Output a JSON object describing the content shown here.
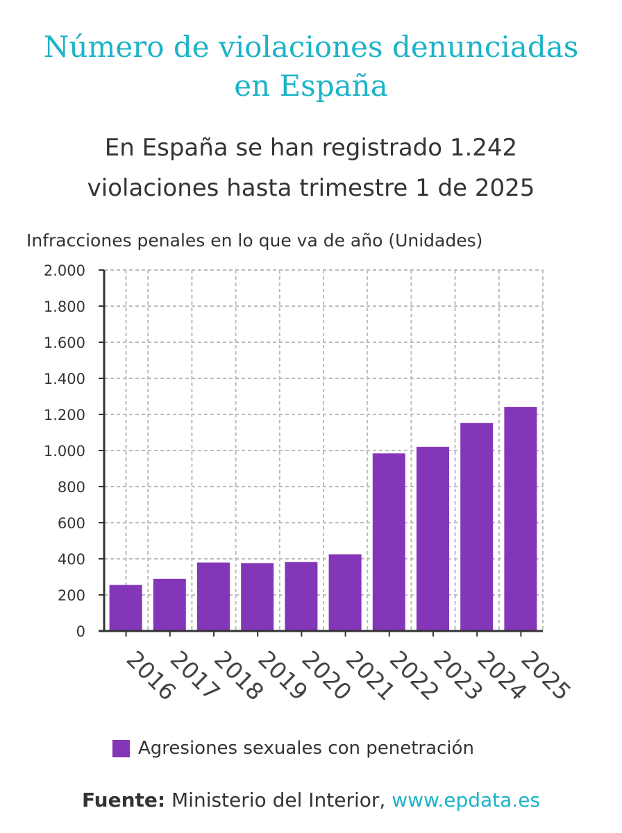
{
  "header": {
    "title_line1": "Número de violaciones denunciadas",
    "title_line2": "en España",
    "subtitle_line1": "En España se han registrado 1.242",
    "subtitle_line2": "violaciones hasta trimestre 1 de 2025"
  },
  "chart_data": {
    "type": "bar",
    "title": "Número de violaciones denunciadas en España",
    "ylabel": "Infracciones penales en lo que va de año (Unidades)",
    "xlabel": "",
    "categories": [
      "2016",
      "2017",
      "2018",
      "2019",
      "2020",
      "2021",
      "2022",
      "2023",
      "2024",
      "2025"
    ],
    "series": [
      {
        "name": "Agresiones sexuales con penetración",
        "values": [
          255,
          289,
          379,
          376,
          382,
          425,
          984,
          1020,
          1153,
          1242
        ],
        "color": "#8436b9"
      }
    ],
    "ylim": [
      0,
      2000
    ],
    "yticks": [
      0,
      200,
      400,
      600,
      800,
      1000,
      1200,
      1400,
      1600,
      1800,
      2000
    ],
    "ytick_labels": [
      "0",
      "200",
      "400",
      "600",
      "800",
      "1.000",
      "1.200",
      "1.400",
      "1.600",
      "1.800",
      "2.000"
    ],
    "grid": true,
    "legend_position": "bottom"
  },
  "footer": {
    "source_label": "Fuente:",
    "source_text": " Ministerio del Interior, ",
    "source_link": "www.epdata.es"
  },
  "colors": {
    "title": "#1bb3c8",
    "bar": "#8436b9",
    "text": "#333333",
    "grid": "#bbbbbb"
  }
}
